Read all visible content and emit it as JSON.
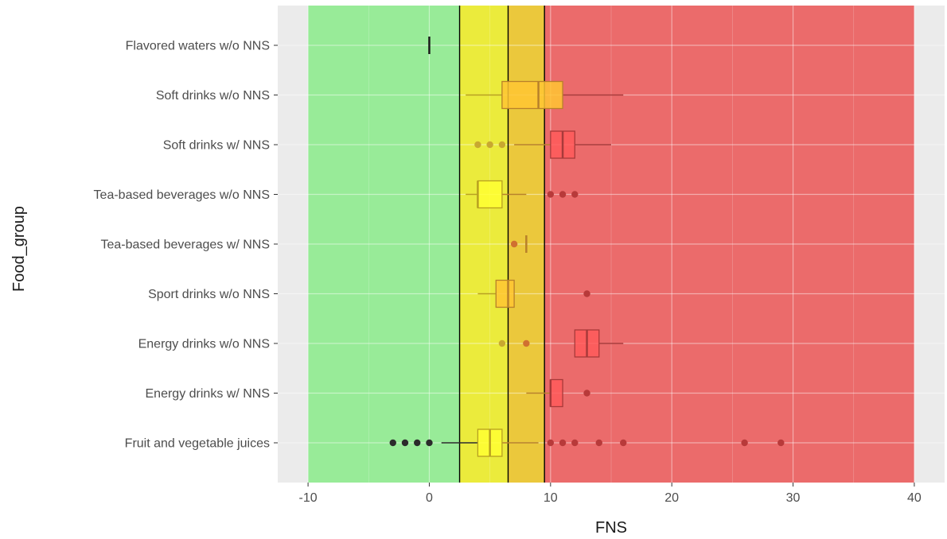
{
  "chart_data": {
    "type": "box",
    "xlabel": "FNS",
    "ylabel": "Food_group",
    "xlim": [
      -12.5,
      42.5
    ],
    "xticks": [
      -10,
      0,
      10,
      20,
      30,
      40
    ],
    "xtick_labels": [
      "-10",
      "0",
      "10",
      "20",
      "30",
      "40"
    ],
    "grid": true,
    "legend": "none",
    "background": "#ebebeb",
    "zones": [
      {
        "from": -10,
        "to": 2.5,
        "color": "#98eb98"
      },
      {
        "from": 2.5,
        "to": 6.5,
        "color": "#ebeb3c"
      },
      {
        "from": 6.5,
        "to": 9.5,
        "color": "#ebc83c"
      },
      {
        "from": 9.5,
        "to": 40,
        "color": "#eb6b6b"
      }
    ],
    "cutoff_lines": [
      2.5,
      6.5,
      9.5
    ],
    "categories": [
      "Flavored waters w/o NNS",
      "Soft drinks w/o NNS",
      "Soft drinks w/ NNS",
      "Tea-based beverages w/o NNS",
      "Tea-based beverages w/ NNS",
      "Sport drinks w/o NNS",
      "Energy drinks w/o NNS",
      "Energy drinks w/ NNS",
      "Fruit and vegetable juices"
    ],
    "boxes": [
      {
        "category": "Flavored waters w/o NNS",
        "min": 0,
        "q1": 0,
        "median": 0,
        "q3": 0,
        "max": 0,
        "outliers": []
      },
      {
        "category": "Soft drinks w/o NNS",
        "min": 3,
        "q1": 6,
        "median": 9,
        "q3": 11,
        "max": 16,
        "outliers": []
      },
      {
        "category": "Soft drinks w/ NNS",
        "min": 7,
        "q1": 10,
        "median": 11,
        "q3": 12,
        "max": 15,
        "outliers": [
          4,
          5,
          6
        ]
      },
      {
        "category": "Tea-based beverages w/o NNS",
        "min": 3,
        "q1": 4,
        "median": 4,
        "q3": 6,
        "max": 8,
        "outliers": [
          10,
          11,
          12
        ]
      },
      {
        "category": "Tea-based beverages w/ NNS",
        "min": 8,
        "q1": 8,
        "median": 8,
        "q3": 8,
        "max": 8,
        "outliers": [
          7
        ]
      },
      {
        "category": "Sport drinks w/o NNS",
        "min": 4,
        "q1": 5.5,
        "median": 6.5,
        "q3": 7,
        "max": 7,
        "outliers": [
          13
        ]
      },
      {
        "category": "Energy drinks w/o NNS",
        "min": 12,
        "q1": 12,
        "median": 13,
        "q3": 14,
        "max": 16,
        "outliers": [
          6,
          8
        ]
      },
      {
        "category": "Energy drinks w/ NNS",
        "min": 8,
        "q1": 10,
        "median": 10,
        "q3": 11,
        "max": 11,
        "outliers": [
          13
        ]
      },
      {
        "category": "Fruit and vegetable juices",
        "min": 1,
        "q1": 4,
        "median": 5,
        "q3": 6,
        "max": 9,
        "outliers": [
          -3,
          -2,
          -1,
          0,
          10,
          11,
          12,
          14,
          16,
          26,
          29
        ]
      }
    ]
  }
}
